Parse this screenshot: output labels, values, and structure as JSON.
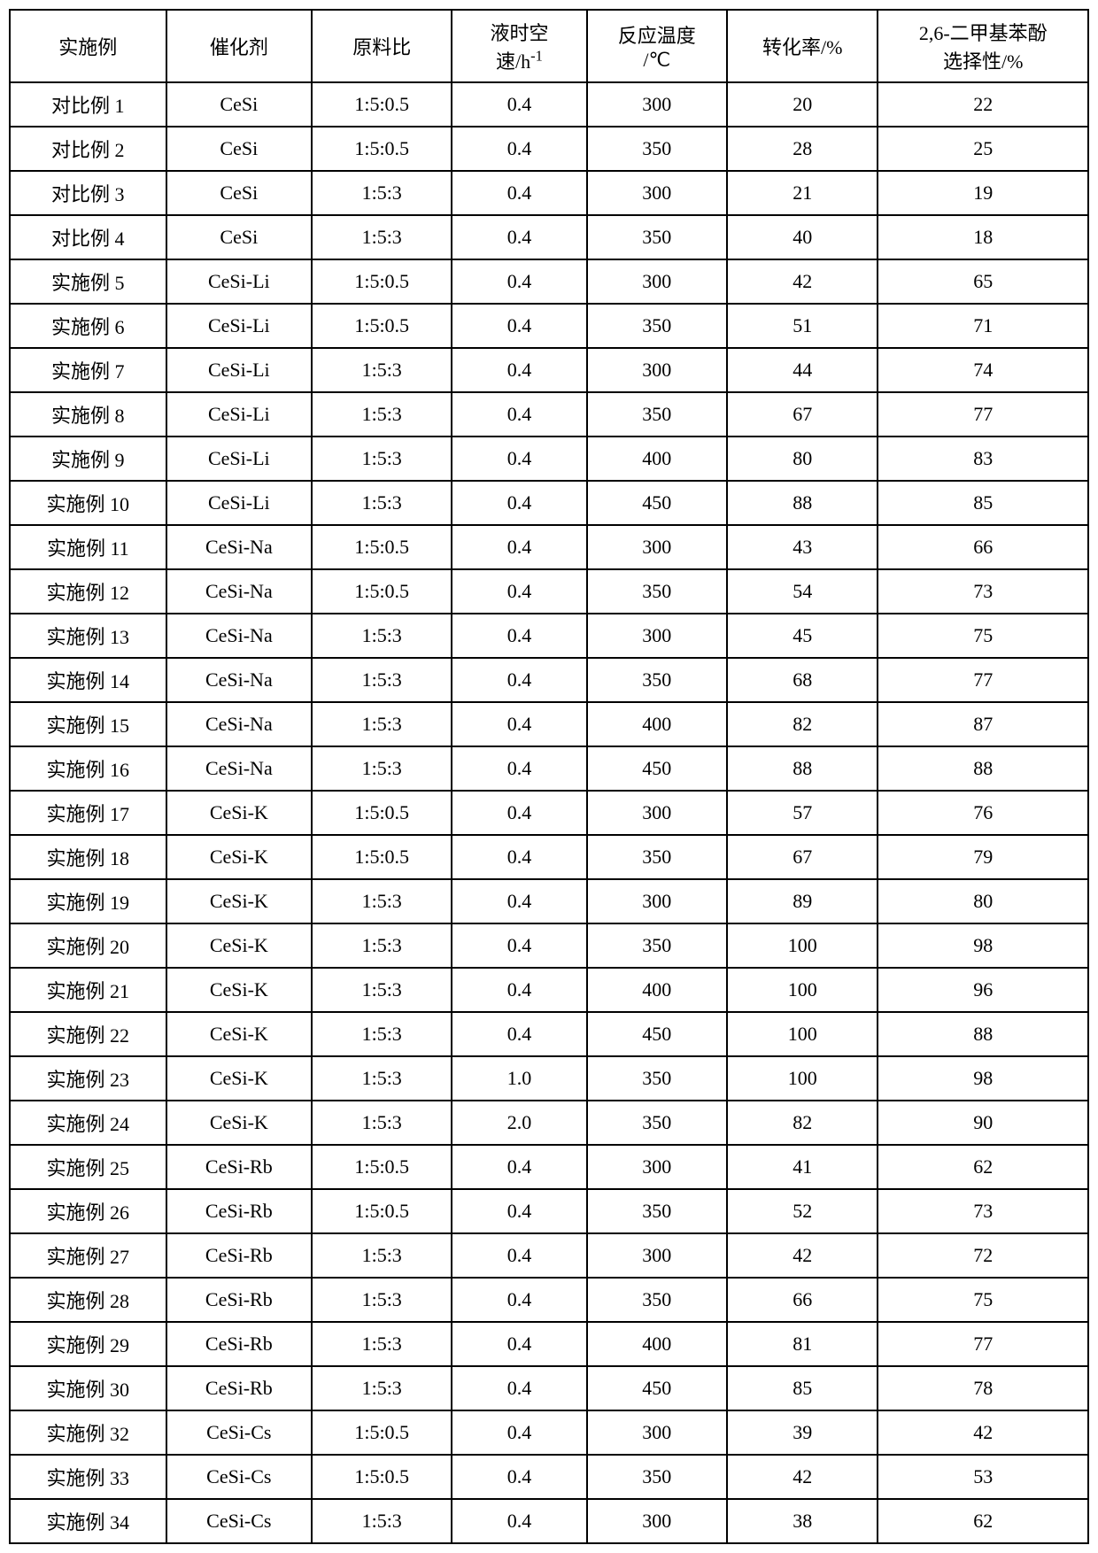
{
  "headers": {
    "example": "实施例",
    "catalyst": "催化剂",
    "ratio": "原料比",
    "lhsv_line1": "液时空",
    "lhsv_line2_pre": "速/h",
    "lhsv_sup": "-1",
    "temp_line1": "反应温度",
    "temp_line2": "/℃",
    "conversion": "转化率/%",
    "selectivity_line1": "2,6-二甲基苯酚",
    "selectivity_line2": "选择性/%"
  },
  "rows": [
    {
      "example": "对比例 1",
      "catalyst": "CeSi",
      "ratio": "1:5:0.5",
      "lhsv": "0.4",
      "temp": "300",
      "conv": "20",
      "sel": "22"
    },
    {
      "example": "对比例 2",
      "catalyst": "CeSi",
      "ratio": "1:5:0.5",
      "lhsv": "0.4",
      "temp": "350",
      "conv": "28",
      "sel": "25"
    },
    {
      "example": "对比例 3",
      "catalyst": "CeSi",
      "ratio": "1:5:3",
      "lhsv": "0.4",
      "temp": "300",
      "conv": "21",
      "sel": "19"
    },
    {
      "example": "对比例 4",
      "catalyst": "CeSi",
      "ratio": "1:5:3",
      "lhsv": "0.4",
      "temp": "350",
      "conv": "40",
      "sel": "18"
    },
    {
      "example": "实施例 5",
      "catalyst": "CeSi-Li",
      "ratio": "1:5:0.5",
      "lhsv": "0.4",
      "temp": "300",
      "conv": "42",
      "sel": "65"
    },
    {
      "example": "实施例 6",
      "catalyst": "CeSi-Li",
      "ratio": "1:5:0.5",
      "lhsv": "0.4",
      "temp": "350",
      "conv": "51",
      "sel": "71"
    },
    {
      "example": "实施例 7",
      "catalyst": "CeSi-Li",
      "ratio": "1:5:3",
      "lhsv": "0.4",
      "temp": "300",
      "conv": "44",
      "sel": "74"
    },
    {
      "example": "实施例 8",
      "catalyst": "CeSi-Li",
      "ratio": "1:5:3",
      "lhsv": "0.4",
      "temp": "350",
      "conv": "67",
      "sel": "77"
    },
    {
      "example": "实施例 9",
      "catalyst": "CeSi-Li",
      "ratio": "1:5:3",
      "lhsv": "0.4",
      "temp": "400",
      "conv": "80",
      "sel": "83"
    },
    {
      "example": "实施例 10",
      "catalyst": "CeSi-Li",
      "ratio": "1:5:3",
      "lhsv": "0.4",
      "temp": "450",
      "conv": "88",
      "sel": "85"
    },
    {
      "example": "实施例 11",
      "catalyst": "CeSi-Na",
      "ratio": "1:5:0.5",
      "lhsv": "0.4",
      "temp": "300",
      "conv": "43",
      "sel": "66"
    },
    {
      "example": "实施例 12",
      "catalyst": "CeSi-Na",
      "ratio": "1:5:0.5",
      "lhsv": "0.4",
      "temp": "350",
      "conv": "54",
      "sel": "73"
    },
    {
      "example": "实施例 13",
      "catalyst": "CeSi-Na",
      "ratio": "1:5:3",
      "lhsv": "0.4",
      "temp": "300",
      "conv": "45",
      "sel": "75"
    },
    {
      "example": "实施例 14",
      "catalyst": "CeSi-Na",
      "ratio": "1:5:3",
      "lhsv": "0.4",
      "temp": "350",
      "conv": "68",
      "sel": "77"
    },
    {
      "example": "实施例 15",
      "catalyst": "CeSi-Na",
      "ratio": "1:5:3",
      "lhsv": "0.4",
      "temp": "400",
      "conv": "82",
      "sel": "87"
    },
    {
      "example": "实施例 16",
      "catalyst": "CeSi-Na",
      "ratio": "1:5:3",
      "lhsv": "0.4",
      "temp": "450",
      "conv": "88",
      "sel": "88"
    },
    {
      "example": "实施例 17",
      "catalyst": "CeSi-K",
      "ratio": "1:5:0.5",
      "lhsv": "0.4",
      "temp": "300",
      "conv": "57",
      "sel": "76"
    },
    {
      "example": "实施例 18",
      "catalyst": "CeSi-K",
      "ratio": "1:5:0.5",
      "lhsv": "0.4",
      "temp": "350",
      "conv": "67",
      "sel": "79"
    },
    {
      "example": "实施例 19",
      "catalyst": "CeSi-K",
      "ratio": "1:5:3",
      "lhsv": "0.4",
      "temp": "300",
      "conv": "89",
      "sel": "80"
    },
    {
      "example": "实施例 20",
      "catalyst": "CeSi-K",
      "ratio": "1:5:3",
      "lhsv": "0.4",
      "temp": "350",
      "conv": "100",
      "sel": "98"
    },
    {
      "example": "实施例 21",
      "catalyst": "CeSi-K",
      "ratio": "1:5:3",
      "lhsv": "0.4",
      "temp": "400",
      "conv": "100",
      "sel": "96"
    },
    {
      "example": "实施例 22",
      "catalyst": "CeSi-K",
      "ratio": "1:5:3",
      "lhsv": "0.4",
      "temp": "450",
      "conv": "100",
      "sel": "88"
    },
    {
      "example": "实施例 23",
      "catalyst": "CeSi-K",
      "ratio": "1:5:3",
      "lhsv": "1.0",
      "temp": "350",
      "conv": "100",
      "sel": "98"
    },
    {
      "example": "实施例 24",
      "catalyst": "CeSi-K",
      "ratio": "1:5:3",
      "lhsv": "2.0",
      "temp": "350",
      "conv": "82",
      "sel": "90"
    },
    {
      "example": "实施例 25",
      "catalyst": "CeSi-Rb",
      "ratio": "1:5:0.5",
      "lhsv": "0.4",
      "temp": "300",
      "conv": "41",
      "sel": "62"
    },
    {
      "example": "实施例 26",
      "catalyst": "CeSi-Rb",
      "ratio": "1:5:0.5",
      "lhsv": "0.4",
      "temp": "350",
      "conv": "52",
      "sel": "73"
    },
    {
      "example": "实施例 27",
      "catalyst": "CeSi-Rb",
      "ratio": "1:5:3",
      "lhsv": "0.4",
      "temp": "300",
      "conv": "42",
      "sel": "72"
    },
    {
      "example": "实施例 28",
      "catalyst": "CeSi-Rb",
      "ratio": "1:5:3",
      "lhsv": "0.4",
      "temp": "350",
      "conv": "66",
      "sel": "75"
    },
    {
      "example": "实施例 29",
      "catalyst": "CeSi-Rb",
      "ratio": "1:5:3",
      "lhsv": "0.4",
      "temp": "400",
      "conv": "81",
      "sel": "77"
    },
    {
      "example": "实施例 30",
      "catalyst": "CeSi-Rb",
      "ratio": "1:5:3",
      "lhsv": "0.4",
      "temp": "450",
      "conv": "85",
      "sel": "78"
    },
    {
      "example": "实施例 32",
      "catalyst": "CeSi-Cs",
      "ratio": "1:5:0.5",
      "lhsv": "0.4",
      "temp": "300",
      "conv": "39",
      "sel": "42"
    },
    {
      "example": "实施例 33",
      "catalyst": "CeSi-Cs",
      "ratio": "1:5:0.5",
      "lhsv": "0.4",
      "temp": "350",
      "conv": "42",
      "sel": "53"
    },
    {
      "example": "实施例 34",
      "catalyst": "CeSi-Cs",
      "ratio": "1:5:3",
      "lhsv": "0.4",
      "temp": "300",
      "conv": "38",
      "sel": "62"
    }
  ],
  "style": {
    "border_color": "#000000",
    "background_color": "#ffffff",
    "text_color": "#000000",
    "font_size": 22,
    "border_width": 2
  }
}
